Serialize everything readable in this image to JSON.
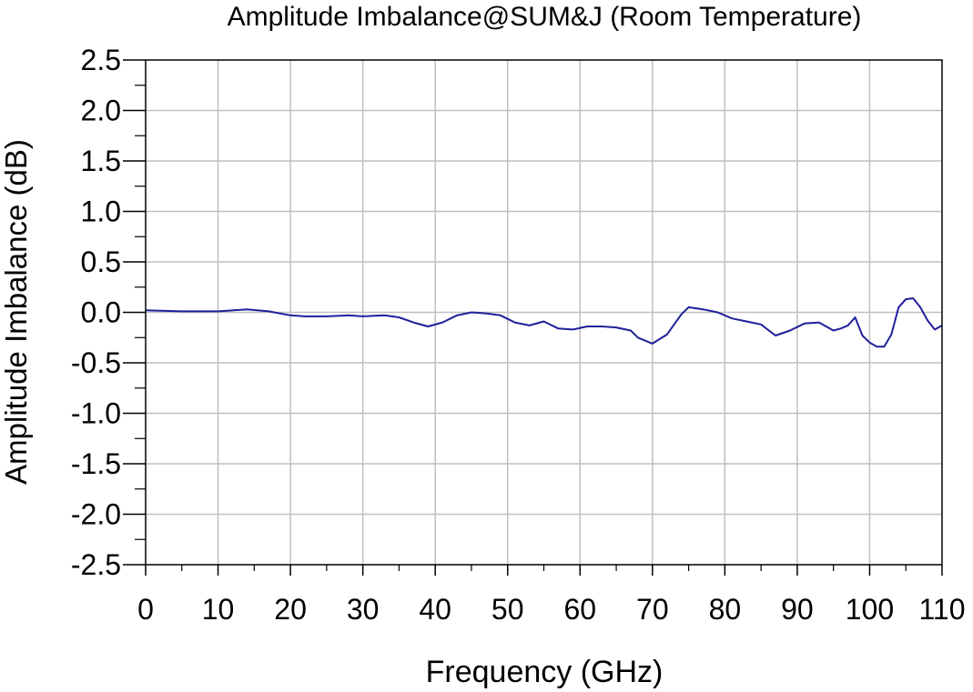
{
  "chart_data": {
    "type": "line",
    "title": "Amplitude Imbalance@SUM&J (Room Temperature)",
    "xlabel": "Frequency (GHz)",
    "ylabel": "Amplitude Imbalance (dB)",
    "xlim": [
      0,
      110
    ],
    "ylim": [
      -2.5,
      2.5
    ],
    "x_ticks": [
      "0",
      "10",
      "20",
      "30",
      "40",
      "50",
      "60",
      "70",
      "80",
      "90",
      "100",
      "110"
    ],
    "y_ticks": [
      "2.5",
      "2.0",
      "1.5",
      "1.0",
      "0.5",
      "0.0",
      "-0.5",
      "-1.0",
      "-1.5",
      "-2.0",
      "-2.5"
    ],
    "grid": true,
    "series": [
      {
        "color": "#1f1f9a",
        "x": [
          0,
          5,
          10,
          14,
          17,
          20,
          22,
          25,
          28,
          30,
          33,
          35,
          37,
          39,
          41,
          43,
          45,
          47,
          49,
          51,
          53,
          55,
          57,
          59,
          61,
          63,
          65,
          67,
          68,
          70,
          72,
          74,
          75,
          77,
          79,
          81,
          83,
          85,
          87,
          89,
          91,
          93,
          95,
          96,
          97,
          98,
          99,
          100,
          101,
          102,
          103,
          104,
          105,
          106,
          107,
          108,
          109,
          110
        ],
        "y": [
          0.02,
          0.01,
          0.01,
          0.03,
          0.01,
          -0.03,
          -0.04,
          -0.04,
          -0.03,
          -0.04,
          -0.03,
          -0.05,
          -0.1,
          -0.14,
          -0.1,
          -0.03,
          0.0,
          -0.01,
          -0.03,
          -0.1,
          -0.13,
          -0.09,
          -0.16,
          -0.17,
          -0.14,
          -0.14,
          -0.15,
          -0.18,
          -0.25,
          -0.31,
          -0.22,
          -0.02,
          0.05,
          0.03,
          0.0,
          -0.06,
          -0.09,
          -0.12,
          -0.23,
          -0.18,
          -0.11,
          -0.1,
          -0.18,
          -0.16,
          -0.13,
          -0.05,
          -0.23,
          -0.3,
          -0.34,
          -0.34,
          -0.22,
          0.05,
          0.13,
          0.14,
          0.05,
          -0.08,
          -0.17,
          -0.13
        ]
      }
    ]
  }
}
